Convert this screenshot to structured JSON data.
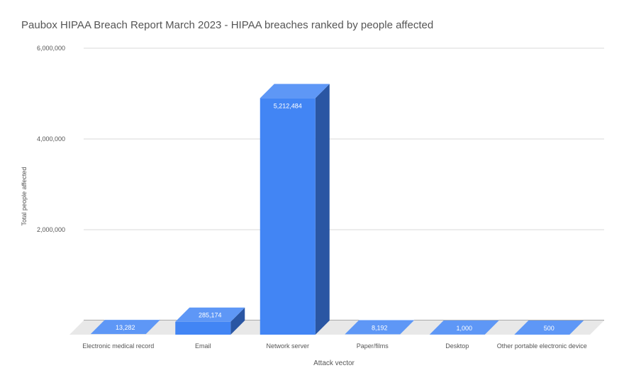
{
  "chart_data": {
    "type": "bar",
    "title": "Paubox HIPAA Breach Report March 2023 - HIPAA breaches ranked by people affected",
    "xlabel": "Attack vector",
    "ylabel": "Total people affected",
    "categories": [
      "Electronic medical record",
      "Email",
      "Network server",
      "Paper/films",
      "Desktop",
      "Other portable electronic device"
    ],
    "values": [
      13282,
      285174,
      5212484,
      8192,
      1000,
      500
    ],
    "value_labels": [
      "13,282",
      "285,174",
      "5,212,484",
      "8,192",
      "1,000",
      "500"
    ],
    "ylim": [
      0,
      6000000
    ],
    "yticks": [
      0,
      2000000,
      4000000,
      6000000
    ],
    "ytick_labels": [
      "",
      "2,000,000",
      "4,000,000",
      "6,000,000"
    ],
    "grid": true,
    "style": "3d",
    "colors": {
      "bar_front": "#4285f4",
      "bar_top": "#5e97f6",
      "bar_side": "#2a56a3",
      "floor": "#e8e8e8",
      "gridline": "#d9d9d9",
      "label": "#555555",
      "value_label": "#ffffff"
    }
  }
}
